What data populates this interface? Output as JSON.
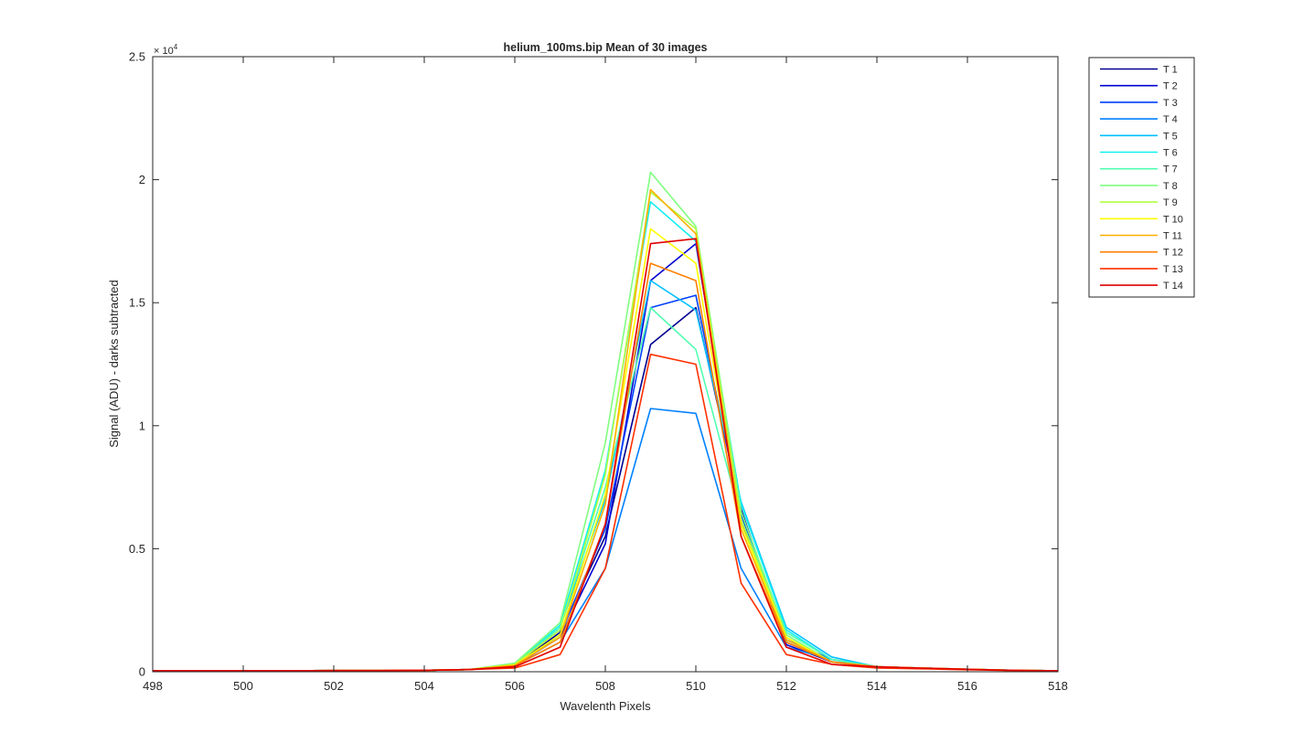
{
  "chart_data": {
    "type": "line",
    "title": "helium_100ms.bip  Mean of 30 images",
    "xlabel": "Wavelenth Pixels",
    "ylabel": "Signal (ADU) - darks subtracted",
    "exponent_label": "× 10",
    "exponent_power": "4",
    "xlim": [
      498,
      518
    ],
    "ylim": [
      0,
      2.5
    ],
    "xticks": [
      "498",
      "500",
      "502",
      "504",
      "506",
      "508",
      "510",
      "512",
      "514",
      "516",
      "518"
    ],
    "yticks": [
      "0",
      "0.5",
      "1",
      "1.5",
      "2",
      "2.5"
    ],
    "grid": false,
    "legend_position": "outside-right-top",
    "x": [
      498,
      499,
      500,
      501,
      502,
      503,
      504,
      505,
      506,
      507,
      508,
      509,
      510,
      511,
      512,
      513,
      514,
      515,
      516,
      517,
      518
    ],
    "series": [
      {
        "name": "T 1",
        "color": "#00008f",
        "values": [
          0.004,
          0.004,
          0.004,
          0.004,
          0.005,
          0.005,
          0.006,
          0.009,
          0.025,
          0.16,
          0.55,
          1.33,
          1.48,
          0.66,
          0.12,
          0.04,
          0.02,
          0.015,
          0.01,
          0.006,
          0.004
        ]
      },
      {
        "name": "T 2",
        "color": "#0000d0",
        "values": [
          0.004,
          0.004,
          0.004,
          0.004,
          0.005,
          0.005,
          0.006,
          0.009,
          0.025,
          0.14,
          0.52,
          1.59,
          1.74,
          0.62,
          0.11,
          0.04,
          0.02,
          0.015,
          0.01,
          0.006,
          0.004
        ]
      },
      {
        "name": "T 3",
        "color": "#0040ff",
        "values": [
          0.004,
          0.004,
          0.004,
          0.004,
          0.005,
          0.005,
          0.006,
          0.009,
          0.025,
          0.15,
          0.58,
          1.48,
          1.53,
          0.64,
          0.13,
          0.05,
          0.02,
          0.015,
          0.01,
          0.006,
          0.004
        ]
      },
      {
        "name": "T 4",
        "color": "#0080ff",
        "values": [
          0.004,
          0.004,
          0.004,
          0.004,
          0.005,
          0.005,
          0.006,
          0.009,
          0.025,
          0.12,
          0.42,
          1.07,
          1.05,
          0.42,
          0.1,
          0.05,
          0.02,
          0.015,
          0.01,
          0.006,
          0.004
        ]
      },
      {
        "name": "T 5",
        "color": "#00c0ff",
        "values": [
          0.004,
          0.004,
          0.004,
          0.004,
          0.005,
          0.005,
          0.006,
          0.009,
          0.028,
          0.18,
          0.7,
          1.59,
          1.47,
          0.69,
          0.18,
          0.06,
          0.02,
          0.015,
          0.01,
          0.006,
          0.004
        ]
      },
      {
        "name": "T 6",
        "color": "#10f0f0",
        "values": [
          0.004,
          0.004,
          0.004,
          0.004,
          0.005,
          0.005,
          0.006,
          0.009,
          0.03,
          0.19,
          0.82,
          1.91,
          1.75,
          0.68,
          0.17,
          0.05,
          0.02,
          0.015,
          0.01,
          0.006,
          0.004
        ]
      },
      {
        "name": "T 7",
        "color": "#50ffb0",
        "values": [
          0.004,
          0.004,
          0.004,
          0.004,
          0.005,
          0.005,
          0.006,
          0.009,
          0.03,
          0.18,
          0.75,
          1.48,
          1.31,
          0.62,
          0.16,
          0.05,
          0.02,
          0.015,
          0.01,
          0.006,
          0.004
        ]
      },
      {
        "name": "T 8",
        "color": "#80ff80",
        "values": [
          0.004,
          0.004,
          0.004,
          0.004,
          0.005,
          0.005,
          0.006,
          0.009,
          0.035,
          0.2,
          0.93,
          2.03,
          1.81,
          0.65,
          0.15,
          0.04,
          0.02,
          0.015,
          0.01,
          0.006,
          0.004
        ]
      },
      {
        "name": "T 9",
        "color": "#b0ff40",
        "values": [
          0.004,
          0.004,
          0.004,
          0.004,
          0.005,
          0.005,
          0.006,
          0.009,
          0.03,
          0.17,
          0.8,
          1.95,
          1.8,
          0.62,
          0.14,
          0.04,
          0.02,
          0.015,
          0.01,
          0.006,
          0.004
        ]
      },
      {
        "name": "T 10",
        "color": "#ffff00",
        "values": [
          0.004,
          0.004,
          0.004,
          0.004,
          0.005,
          0.005,
          0.006,
          0.009,
          0.028,
          0.15,
          0.72,
          1.8,
          1.66,
          0.6,
          0.14,
          0.04,
          0.02,
          0.015,
          0.01,
          0.006,
          0.004
        ]
      },
      {
        "name": "T 11",
        "color": "#ffb000",
        "values": [
          0.004,
          0.004,
          0.004,
          0.004,
          0.005,
          0.005,
          0.006,
          0.009,
          0.026,
          0.14,
          0.68,
          1.96,
          1.78,
          0.58,
          0.13,
          0.04,
          0.02,
          0.015,
          0.01,
          0.006,
          0.004
        ]
      },
      {
        "name": "T 12",
        "color": "#ff8000",
        "values": [
          0.004,
          0.004,
          0.004,
          0.004,
          0.005,
          0.005,
          0.006,
          0.009,
          0.024,
          0.12,
          0.6,
          1.66,
          1.59,
          0.55,
          0.12,
          0.04,
          0.02,
          0.015,
          0.01,
          0.006,
          0.004
        ]
      },
      {
        "name": "T 13",
        "color": "#ff3000",
        "values": [
          0.004,
          0.004,
          0.004,
          0.004,
          0.005,
          0.005,
          0.006,
          0.009,
          0.015,
          0.07,
          0.42,
          1.29,
          1.25,
          0.36,
          0.07,
          0.03,
          0.015,
          0.012,
          0.008,
          0.005,
          0.004
        ]
      },
      {
        "name": "T 14",
        "color": "#e00000",
        "values": [
          0.004,
          0.004,
          0.004,
          0.004,
          0.005,
          0.005,
          0.006,
          0.009,
          0.02,
          0.1,
          0.6,
          1.74,
          1.76,
          0.55,
          0.1,
          0.03,
          0.02,
          0.015,
          0.01,
          0.006,
          0.004
        ]
      }
    ]
  }
}
